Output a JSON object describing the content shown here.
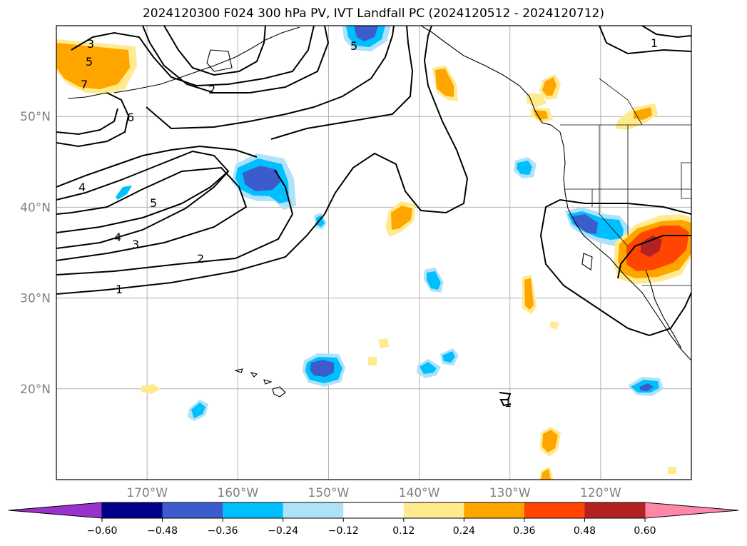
{
  "title": "2024120300 F024 300 hPa PV, IVT Landfall PC (2024120512 - 2024120712)",
  "map": {
    "lon_range": [
      -180,
      -110
    ],
    "lat_range": [
      10,
      60
    ],
    "lat_gridlines": [
      20,
      30,
      40,
      50
    ],
    "lon_gridlines": [
      -170,
      -160,
      -150,
      -140,
      -130,
      -120
    ],
    "lat_tick_labels": [
      "20°N",
      "30°N",
      "40°N",
      "50°N"
    ],
    "lon_tick_labels": [
      "170°W",
      "160°W",
      "150°W",
      "140°W",
      "130°W",
      "120°W"
    ],
    "grid": true
  },
  "contours": {
    "field": "300 hPa PV",
    "labels": [
      "1",
      "2",
      "3",
      "4",
      "5",
      "6",
      "7",
      "2",
      "3",
      "5",
      "4",
      "1",
      "1",
      "5"
    ]
  },
  "colorbar": {
    "ticks": [
      "−0.60",
      "−0.48",
      "−0.36",
      "−0.24",
      "−0.12",
      "0.12",
      "0.24",
      "0.36",
      "0.48",
      "0.60"
    ],
    "under_color": "#9932cc",
    "over_color": "#ff88aa",
    "colors": [
      "#00008b",
      "#3c5ccc",
      "#00bfff",
      "#aee2f8",
      "#ffffff",
      "#ffea8e",
      "#ffa500",
      "#ff4500",
      "#b22222"
    ]
  }
}
